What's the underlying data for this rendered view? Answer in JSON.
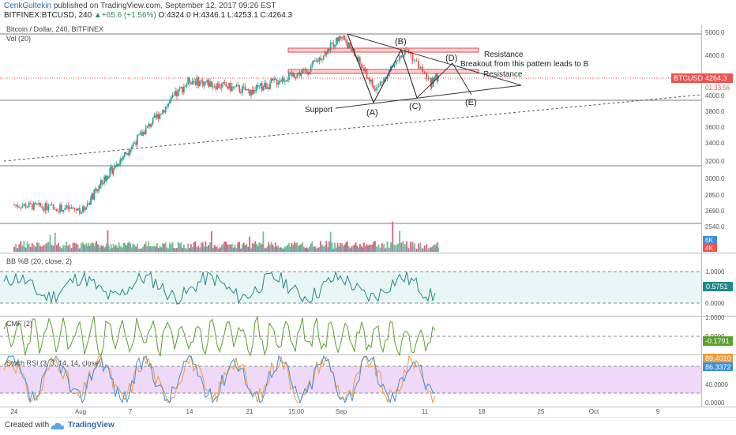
{
  "header": {
    "user": "CenkGultekin",
    "published": "published on TradingView.com, September 12, 2017 09:26 EST",
    "symbol": "BITFINEX:BTCUSD, 240",
    "change": "+65.6 (+1.56%)",
    "ohlc": "O:4324.0 H:4346.1 L:4253.1 C:4264.3"
  },
  "footer": {
    "created_with": "Created with",
    "brand": "TradingView"
  },
  "chart_data": {
    "type": "candlestick",
    "title": "Bitcoin / Dollar, 240, BITFINEX",
    "volume_label": "Vol (20)",
    "price_label": {
      "symbol": "BTCUSD",
      "value": "4264.3",
      "countdown": "01:33:56"
    },
    "current_price": 4264.3,
    "y_ticks": [
      "5000.0",
      "4600.0",
      "4200.0",
      "4000.0",
      "3800.0",
      "3600.0",
      "3400.0",
      "3200.0",
      "3000.0",
      "2850.0",
      "2690.0",
      "2540.0"
    ],
    "volume_ticks": [
      "6K",
      "4K"
    ],
    "x_ticks": [
      "24",
      "Aug",
      "7",
      "14",
      "21",
      "15:00",
      "Sep",
      "11",
      "18",
      "25",
      "Oct",
      "9"
    ],
    "series": [
      {
        "x": "Jul 24",
        "y": 2750
      },
      {
        "x": "Jul 31",
        "y": 2700
      },
      {
        "x": "Aug 7",
        "y": 3350
      },
      {
        "x": "Aug 14",
        "y": 4200
      },
      {
        "x": "Aug 21",
        "y": 4050
      },
      {
        "x": "Aug 28",
        "y": 4350
      },
      {
        "x": "Sep 1",
        "y": 4950
      },
      {
        "x": "Sep 5",
        "y": 4050
      },
      {
        "x": "Sep 8",
        "y": 4700
      },
      {
        "x": "Sep 10",
        "y": 4150
      },
      {
        "x": "Sep 12",
        "y": 4264.3
      }
    ],
    "annotations": {
      "resistance_1": "Resistance",
      "resistance_2": "Resistance",
      "breakout": "Breakout from this pattern leads to B",
      "support": "Support",
      "point_a": "(A)",
      "point_b": "(B)",
      "point_c": "(C)",
      "point_d": "(D)",
      "point_e": "(E)"
    },
    "indicators": [
      {
        "name": "BB %B (20, close, 2)",
        "value": "0.5751",
        "ticks": [
          "1.0000",
          "0.0000"
        ],
        "color": "#1e8a8a"
      },
      {
        "name": "CMF (2)",
        "value": "-0.1791",
        "ticks": [
          "1.0000",
          "0.0000"
        ],
        "color": "#5aa02c"
      },
      {
        "name": "Stoch RSI (3, 3, 14, 14, close)",
        "values": [
          "89.4010",
          "86.3372"
        ],
        "ticks": [
          "40.0000",
          "0.0000"
        ],
        "colors": [
          "#f39c34",
          "#3b8fd9"
        ]
      }
    ],
    "colors": {
      "up": "#26a69a",
      "down": "#ef5350",
      "price_tag": "#ef5350"
    }
  }
}
